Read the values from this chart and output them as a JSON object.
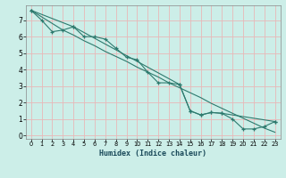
{
  "xlabel": "Humidex (Indice chaleur)",
  "bg_color": "#cceee8",
  "grid_color": "#b8ddd8",
  "line_color": "#2d7a6e",
  "xlim_min": -0.5,
  "xlim_max": 23.5,
  "ylim_min": -0.2,
  "ylim_max": 7.9,
  "xticks": [
    0,
    1,
    2,
    3,
    4,
    5,
    6,
    7,
    8,
    9,
    10,
    11,
    12,
    13,
    14,
    15,
    16,
    17,
    18,
    19,
    20,
    21,
    22,
    23
  ],
  "yticks": [
    0,
    1,
    2,
    3,
    4,
    5,
    6,
    7
  ],
  "line1_x": [
    0,
    1,
    2,
    3,
    4,
    5,
    6,
    7,
    8,
    9,
    10,
    11,
    12,
    13,
    14,
    15,
    16,
    17,
    18,
    19,
    20,
    21,
    22,
    23
  ],
  "line1_y": [
    7.6,
    7.0,
    6.3,
    6.4,
    6.6,
    6.0,
    6.0,
    5.85,
    5.3,
    4.75,
    4.6,
    3.85,
    3.2,
    3.2,
    3.1,
    1.5,
    1.25,
    1.4,
    1.35,
    1.0,
    0.4,
    0.4,
    0.55,
    0.85
  ],
  "line2_x": [
    0,
    1,
    2,
    3,
    4,
    5,
    6,
    7,
    8,
    9,
    10,
    11,
    12,
    13,
    14,
    15,
    16,
    17,
    18,
    19,
    20,
    21,
    22,
    23
  ],
  "line2_y": [
    7.6,
    7.2,
    6.8,
    6.4,
    6.1,
    5.75,
    5.45,
    5.1,
    4.8,
    4.5,
    4.15,
    3.85,
    3.55,
    3.2,
    2.9,
    2.6,
    2.3,
    1.95,
    1.65,
    1.35,
    1.05,
    0.75,
    0.45,
    0.2
  ],
  "line3_x": [
    0,
    4,
    14,
    15,
    16,
    17,
    18,
    23
  ],
  "line3_y": [
    7.6,
    6.6,
    3.1,
    1.5,
    1.25,
    1.4,
    1.35,
    0.85
  ]
}
